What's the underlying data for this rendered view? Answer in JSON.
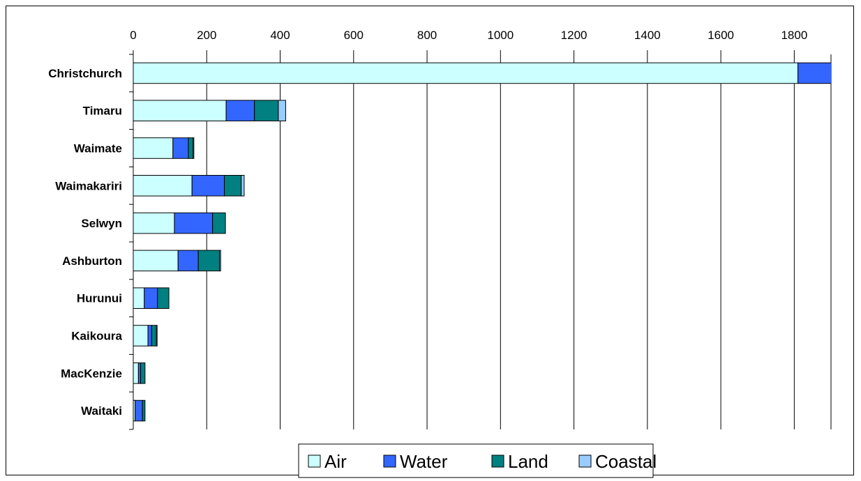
{
  "chart_data": {
    "type": "bar",
    "orientation": "horizontal",
    "stacked": true,
    "categories": [
      "Christchurch",
      "Timaru",
      "Waimate",
      "Waimakariri",
      "Selwyn",
      "Ashburton",
      "Hurunui",
      "Kaikoura",
      "MacKenzie",
      "Waitaki"
    ],
    "series": [
      {
        "name": "Air",
        "color": "#ccffff",
        "values": [
          1810,
          253,
          108,
          160,
          112,
          122,
          30,
          40,
          14,
          5
        ]
      },
      {
        "name": "Water",
        "color": "#3366ff",
        "values": [
          100,
          77,
          42,
          88,
          104,
          55,
          36,
          10,
          6,
          20
        ]
      },
      {
        "name": "Land",
        "color": "#008080",
        "values": [
          0,
          65,
          13,
          46,
          35,
          58,
          31,
          13,
          12,
          7
        ]
      },
      {
        "name": "Coastal",
        "color": "#99ccff",
        "values": [
          0,
          20,
          2,
          8,
          0,
          3,
          0,
          2,
          0,
          0
        ]
      }
    ],
    "x_ticks": [
      "0",
      "200",
      "400",
      "600",
      "800",
      "1000",
      "1200",
      "1400",
      "1600",
      "1800"
    ],
    "xlim": [
      0,
      1900
    ],
    "x_axis_position": "top",
    "grid": {
      "vertical": true,
      "horizontal": false
    },
    "legend": {
      "placement": "bottom-center",
      "entries": [
        "Air",
        "Water",
        "Land",
        "Coastal"
      ]
    },
    "title": "",
    "xlabel": "",
    "ylabel": ""
  }
}
